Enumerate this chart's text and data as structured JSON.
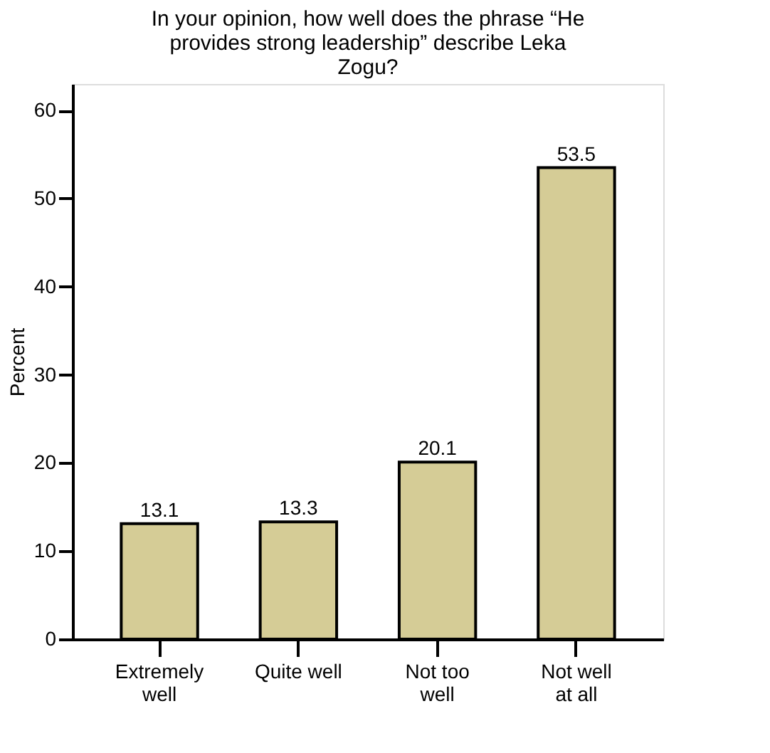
{
  "chart_data": {
    "type": "bar",
    "title": "In your opinion, how well does the phrase “He provides strong leadership” describe Leka Zogu?",
    "ylabel": "Percent",
    "categories": [
      "Extremely well",
      "Quite well",
      "Not too well",
      "Not well at all"
    ],
    "values": [
      13.1,
      13.3,
      20.1,
      53.5
    ],
    "color": "#d5cc96",
    "ylim": [
      0,
      63
    ],
    "yticks": [
      0,
      10,
      20,
      30,
      40,
      50,
      60
    ],
    "grid": false,
    "data_labels": true
  }
}
